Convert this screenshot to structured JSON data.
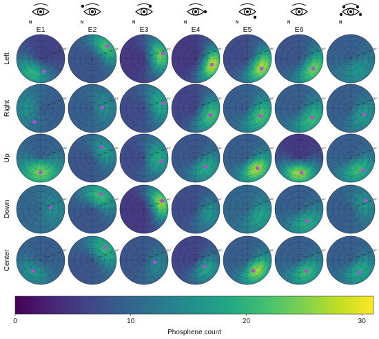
{
  "chart_data": {
    "type": "heatmap",
    "subtype": "polar-grid",
    "columns": [
      "E1",
      "E2",
      "E3",
      "E4",
      "E5",
      "E6",
      ""
    ],
    "rows": [
      "Left",
      "Right",
      "Up",
      "Down",
      "Center"
    ],
    "eye_icon_letter": "N",
    "polar_ring_labels": [
      "15°",
      "30°",
      "45°",
      "60°"
    ],
    "colorbar": {
      "title": "Phosphene count",
      "ticks": [
        0,
        10,
        20,
        30
      ],
      "range": [
        0,
        31
      ],
      "colormap": "viridis"
    },
    "marker_color": "#b34fd6",
    "cells": [
      {
        "row": "Left",
        "col": "E1",
        "base": 6,
        "hot": [
          {
            "ang": 240,
            "r": 0.7,
            "v": 20,
            "w": 0.6
          }
        ],
        "marker": {
          "ang": 285,
          "r": 0.55
        }
      },
      {
        "row": "Left",
        "col": "E2",
        "base": 8,
        "hot": [
          {
            "ang": 40,
            "r": 0.75,
            "v": 22,
            "w": 0.5
          }
        ],
        "marker": {
          "ang": 40,
          "r": 0.82
        }
      },
      {
        "row": "Left",
        "col": "E3",
        "base": 5,
        "hot": [
          {
            "ang": 10,
            "r": 0.7,
            "v": 24,
            "w": 0.55
          }
        ],
        "marker": {
          "ang": 15,
          "r": 0.82
        }
      },
      {
        "row": "Left",
        "col": "E4",
        "base": 5,
        "hot": [
          {
            "ang": -20,
            "r": 0.75,
            "v": 28,
            "w": 0.5
          }
        ],
        "marker": {
          "ang": -20,
          "r": 0.72
        }
      },
      {
        "row": "Left",
        "col": "E5",
        "base": 7,
        "hot": [
          {
            "ang": -30,
            "r": 0.7,
            "v": 27,
            "w": 0.55
          }
        ],
        "marker": {
          "ang": -35,
          "r": 0.72
        }
      },
      {
        "row": "Left",
        "col": "E6",
        "base": 8,
        "hot": [
          {
            "ang": -35,
            "r": 0.75,
            "v": 24,
            "w": 0.55
          }
        ],
        "marker": {
          "ang": -35,
          "r": 0.72
        }
      },
      {
        "row": "Left",
        "col": "",
        "base": 9,
        "hot": [
          {
            "ang": -60,
            "r": 0.6,
            "v": 16,
            "w": 0.7
          }
        ],
        "marker": null
      },
      {
        "row": "Right",
        "col": "E1",
        "base": 9,
        "hot": [
          {
            "ang": 180,
            "r": 0.6,
            "v": 15,
            "w": 0.7
          }
        ],
        "marker": {
          "ang": 245,
          "r": 0.62
        }
      },
      {
        "row": "Right",
        "col": "E2",
        "base": 9,
        "hot": [
          {
            "ang": 10,
            "r": 0.5,
            "v": 15,
            "w": 0.7
          }
        ],
        "marker": {
          "ang": 5,
          "r": 0.42
        }
      },
      {
        "row": "Right",
        "col": "E3",
        "base": 7,
        "hot": [
          {
            "ang": 15,
            "r": 0.7,
            "v": 19,
            "w": 0.6
          }
        ],
        "marker": {
          "ang": 15,
          "r": 0.82
        }
      },
      {
        "row": "Right",
        "col": "E4",
        "base": 6,
        "hot": [
          {
            "ang": -25,
            "r": 0.7,
            "v": 22,
            "w": 0.6
          }
        ],
        "marker": {
          "ang": -25,
          "r": 0.66
        }
      },
      {
        "row": "Right",
        "col": "E5",
        "base": 9,
        "hot": [
          {
            "ang": -30,
            "r": 0.65,
            "v": 22,
            "w": 0.6
          }
        ],
        "marker": {
          "ang": -30,
          "r": 0.62
        }
      },
      {
        "row": "Right",
        "col": "E6",
        "base": 9,
        "hot": [
          {
            "ang": -40,
            "r": 0.7,
            "v": 21,
            "w": 0.6
          }
        ],
        "marker": {
          "ang": -35,
          "r": 0.66
        }
      },
      {
        "row": "Right",
        "col": "",
        "base": 9,
        "hot": [
          {
            "ang": -30,
            "r": 0.6,
            "v": 17,
            "w": 0.6
          }
        ],
        "marker": {
          "ang": -25,
          "r": 0.6
        }
      },
      {
        "row": "Up",
        "col": "E1",
        "base": 9,
        "hot": [
          {
            "ang": -90,
            "r": 0.6,
            "v": 24,
            "w": 0.7
          }
        ],
        "marker": {
          "ang": -90,
          "r": 0.6
        }
      },
      {
        "row": "Up",
        "col": "E2",
        "base": 8,
        "hot": [
          {
            "ang": 30,
            "r": 0.6,
            "v": 17,
            "w": 0.6
          }
        ],
        "marker": {
          "ang": 50,
          "r": 0.6
        }
      },
      {
        "row": "Up",
        "col": "E3",
        "base": 7,
        "hot": [
          {
            "ang": 0,
            "r": 0.6,
            "v": 19,
            "w": 0.65
          }
        ],
        "marker": {
          "ang": -10,
          "r": 0.72
        }
      },
      {
        "row": "Up",
        "col": "E4",
        "base": 8,
        "hot": [
          {
            "ang": -45,
            "r": 0.6,
            "v": 19,
            "w": 0.6
          }
        ],
        "marker": {
          "ang": -40,
          "r": 0.56
        }
      },
      {
        "row": "Up",
        "col": "E5",
        "base": 9,
        "hot": [
          {
            "ang": -50,
            "r": 0.6,
            "v": 27,
            "w": 0.55
          }
        ],
        "marker": {
          "ang": -45,
          "r": 0.6
        }
      },
      {
        "row": "Up",
        "col": "E6",
        "base": 5,
        "hot": [
          {
            "ang": -90,
            "r": 0.65,
            "v": 26,
            "w": 0.6
          }
        ],
        "marker": {
          "ang": -80,
          "r": 0.62
        }
      },
      {
        "row": "Up",
        "col": "",
        "base": 9,
        "hot": [
          {
            "ang": -60,
            "r": 0.6,
            "v": 21,
            "w": 0.6
          }
        ],
        "marker": {
          "ang": -45,
          "r": 0.72
        }
      },
      {
        "row": "Down",
        "col": "E1",
        "base": 10,
        "hot": [
          {
            "ang": 0,
            "r": 0.5,
            "v": 15,
            "w": 0.7
          }
        ],
        "marker": {
          "ang": 10,
          "r": 0.42
        }
      },
      {
        "row": "Down",
        "col": "E2",
        "base": 8,
        "hot": [
          {
            "ang": 60,
            "r": 0.65,
            "v": 21,
            "w": 0.6
          }
        ],
        "marker": {
          "ang": 60,
          "r": 0.72
        }
      },
      {
        "row": "Down",
        "col": "E3",
        "base": 5,
        "hot": [
          {
            "ang": 20,
            "r": 0.75,
            "v": 26,
            "w": 0.5
          }
        ],
        "marker": {
          "ang": 25,
          "r": 0.82
        }
      },
      {
        "row": "Down",
        "col": "E4",
        "base": 7,
        "hot": [
          {
            "ang": -20,
            "r": 0.6,
            "v": 16,
            "w": 0.6
          }
        ],
        "marker": null
      },
      {
        "row": "Down",
        "col": "E5",
        "base": 10,
        "hot": [
          {
            "ang": -30,
            "r": 0.6,
            "v": 18,
            "w": 0.6
          }
        ],
        "marker": null
      },
      {
        "row": "Down",
        "col": "E6",
        "base": 9,
        "hot": [
          {
            "ang": -60,
            "r": 0.65,
            "v": 19,
            "w": 0.6
          }
        ],
        "marker": {
          "ang": -55,
          "r": 0.6
        }
      },
      {
        "row": "Down",
        "col": "",
        "base": 9,
        "hot": [
          {
            "ang": 20,
            "r": 0.6,
            "v": 16,
            "w": 0.6
          }
        ],
        "marker": {
          "ang": 30,
          "r": 0.72
        }
      },
      {
        "row": "Center",
        "col": "E1",
        "base": 9,
        "hot": [
          {
            "ang": -120,
            "r": 0.6,
            "v": 16,
            "w": 0.6
          }
        ],
        "marker": {
          "ang": -125,
          "r": 0.55
        }
      },
      {
        "row": "Center",
        "col": "E2",
        "base": 8,
        "hot": [
          {
            "ang": 40,
            "r": 0.7,
            "v": 20,
            "w": 0.6
          }
        ],
        "marker": {
          "ang": 45,
          "r": 0.75
        }
      },
      {
        "row": "Center",
        "col": "E3",
        "base": 8,
        "hot": [
          {
            "ang": -20,
            "r": 0.6,
            "v": 14,
            "w": 0.6
          }
        ],
        "marker": {
          "ang": -10,
          "r": 0.45
        }
      },
      {
        "row": "Center",
        "col": "E4",
        "base": 6,
        "hot": [
          {
            "ang": -40,
            "r": 0.6,
            "v": 18,
            "w": 0.6
          }
        ],
        "marker": {
          "ang": -35,
          "r": 0.45
        }
      },
      {
        "row": "Center",
        "col": "E5",
        "base": 9,
        "hot": [
          {
            "ang": -45,
            "r": 0.6,
            "v": 26,
            "w": 0.55
          }
        ],
        "marker": {
          "ang": -60,
          "r": 0.5
        }
      },
      {
        "row": "Center",
        "col": "E6",
        "base": 9,
        "hot": [
          {
            "ang": -60,
            "r": 0.6,
            "v": 21,
            "w": 0.6
          }
        ],
        "marker": {
          "ang": -55,
          "r": 0.55
        }
      },
      {
        "row": "Center",
        "col": "",
        "base": 9,
        "hot": [
          {
            "ang": -50,
            "r": 0.6,
            "v": 19,
            "w": 0.6
          }
        ],
        "marker": {
          "ang": -55,
          "r": 0.6
        }
      }
    ]
  }
}
